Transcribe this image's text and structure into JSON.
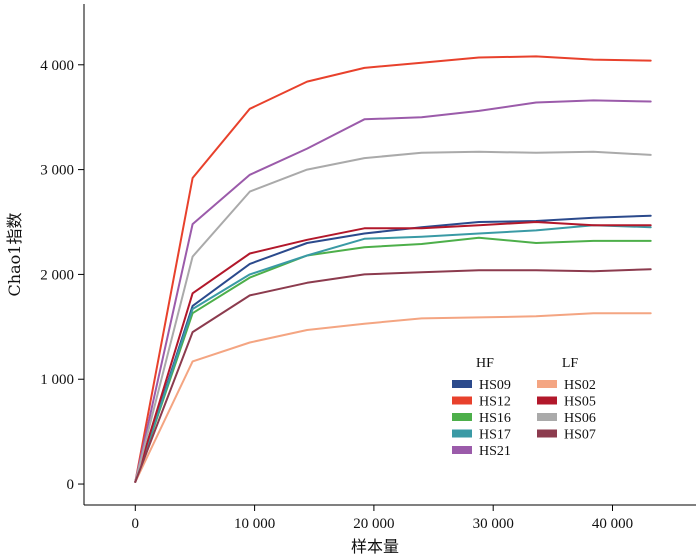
{
  "chart_data": {
    "type": "line",
    "title": "",
    "xlabel": "样本量",
    "ylabel": "Chao1指数",
    "xlim": [
      -4300,
      47000
    ],
    "ylim": [
      -200,
      4580
    ],
    "x_ticks": [
      0,
      10000,
      20000,
      30000,
      40000
    ],
    "x_tick_labels": [
      "0",
      "10 000",
      "20 000",
      "30 000",
      "40 000"
    ],
    "y_ticks": [
      0,
      1000,
      2000,
      3000,
      4000
    ],
    "y_tick_labels": [
      "0",
      "1 000",
      "2 000",
      "3 000",
      "4 000"
    ],
    "grid": false,
    "legend_placement": "bottom-right",
    "x": [
      0,
      4800,
      9600,
      14400,
      19200,
      24000,
      28800,
      33600,
      38400,
      43200
    ],
    "legend_groups": [
      {
        "title": "HF",
        "series": [
          "HS09",
          "HS12",
          "HS16",
          "HS17",
          "HS21"
        ]
      },
      {
        "title": "LF",
        "series": [
          "HS02",
          "HS05",
          "HS06",
          "HS07"
        ]
      }
    ],
    "series": [
      {
        "name": "HS09",
        "group": "HF",
        "color": "#2B4A8C",
        "values": [
          20,
          1700,
          2100,
          2300,
          2390,
          2450,
          2500,
          2510,
          2540,
          2560
        ]
      },
      {
        "name": "HS12",
        "group": "HF",
        "color": "#E8412C",
        "values": [
          20,
          2920,
          3580,
          3840,
          3970,
          4020,
          4070,
          4080,
          4050,
          4040
        ]
      },
      {
        "name": "HS16",
        "group": "HF",
        "color": "#4DAF4A",
        "values": [
          20,
          1630,
          1970,
          2180,
          2260,
          2290,
          2350,
          2300,
          2320,
          2320
        ]
      },
      {
        "name": "HS17",
        "group": "HF",
        "color": "#3A9AA5",
        "values": [
          20,
          1670,
          2000,
          2180,
          2340,
          2360,
          2390,
          2420,
          2470,
          2450
        ]
      },
      {
        "name": "HS21",
        "group": "HF",
        "color": "#9B5BAA",
        "values": [
          20,
          2480,
          2950,
          3200,
          3480,
          3500,
          3560,
          3640,
          3660,
          3650
        ]
      },
      {
        "name": "HS02",
        "group": "LF",
        "color": "#F4A582",
        "values": [
          20,
          1170,
          1350,
          1470,
          1530,
          1580,
          1590,
          1600,
          1630,
          1630
        ]
      },
      {
        "name": "HS05",
        "group": "LF",
        "color": "#B2182B",
        "values": [
          20,
          1820,
          2200,
          2330,
          2440,
          2440,
          2470,
          2500,
          2470,
          2470
        ]
      },
      {
        "name": "HS06",
        "group": "LF",
        "color": "#AAAAAA",
        "values": [
          20,
          2170,
          2790,
          3000,
          3110,
          3160,
          3170,
          3160,
          3170,
          3140
        ]
      },
      {
        "name": "HS07",
        "group": "LF",
        "color": "#8C3B4E",
        "values": [
          20,
          1450,
          1800,
          1920,
          2000,
          2020,
          2040,
          2040,
          2030,
          2050
        ]
      }
    ]
  }
}
